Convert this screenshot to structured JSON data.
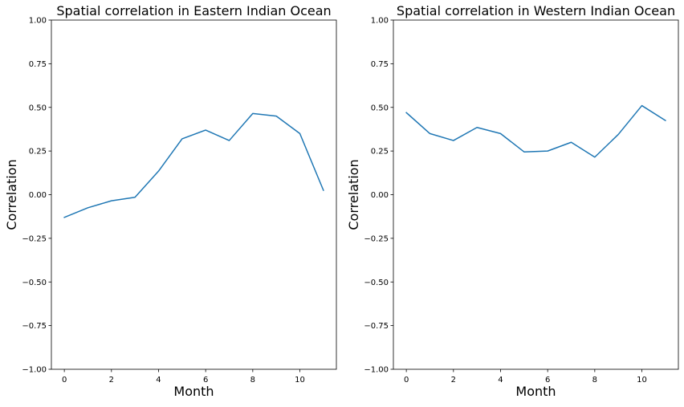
{
  "chart_data": [
    {
      "type": "line",
      "title": "Spatial correlation in Eastern Indian Ocean",
      "xlabel": "Month",
      "ylabel": "Correlation",
      "xlim": [
        -0.55,
        11.55
      ],
      "ylim": [
        -1.0,
        1.0
      ],
      "xticks": [
        0,
        2,
        4,
        6,
        8,
        10
      ],
      "xtick_labels": [
        "0",
        "2",
        "4",
        "6",
        "8",
        "10"
      ],
      "yticks": [
        -1.0,
        -0.75,
        -0.5,
        -0.25,
        0.0,
        0.25,
        0.5,
        0.75,
        1.0
      ],
      "ytick_labels": [
        "−1.00",
        "−0.75",
        "−0.50",
        "−0.25",
        "0.00",
        "0.25",
        "0.50",
        "0.75",
        "1.00"
      ],
      "grid": false,
      "series": [
        {
          "color": "#1f77b4",
          "x": [
            0,
            1,
            2,
            3,
            4,
            5,
            6,
            7,
            8,
            9,
            10,
            11
          ],
          "y": [
            -0.13,
            -0.075,
            -0.035,
            -0.015,
            0.135,
            0.32,
            0.37,
            0.31,
            0.465,
            0.45,
            0.35,
            0.025
          ]
        }
      ]
    },
    {
      "type": "line",
      "title": "Spatial correlation in Western Indian Ocean",
      "xlabel": "Month",
      "ylabel": "Correlation",
      "xlim": [
        -0.55,
        11.55
      ],
      "ylim": [
        -1.0,
        1.0
      ],
      "xticks": [
        0,
        2,
        4,
        6,
        8,
        10
      ],
      "xtick_labels": [
        "0",
        "2",
        "4",
        "6",
        "8",
        "10"
      ],
      "yticks": [
        -1.0,
        -0.75,
        -0.5,
        -0.25,
        0.0,
        0.25,
        0.5,
        0.75,
        1.0
      ],
      "ytick_labels": [
        "−1.00",
        "−0.75",
        "−0.50",
        "−0.25",
        "0.00",
        "0.25",
        "0.50",
        "0.75",
        "1.00"
      ],
      "grid": false,
      "series": [
        {
          "color": "#1f77b4",
          "x": [
            0,
            1,
            2,
            3,
            4,
            5,
            6,
            7,
            8,
            9,
            10,
            11
          ],
          "y": [
            0.47,
            0.35,
            0.31,
            0.385,
            0.35,
            0.245,
            0.25,
            0.3,
            0.215,
            0.345,
            0.51,
            0.425
          ]
        }
      ]
    }
  ]
}
